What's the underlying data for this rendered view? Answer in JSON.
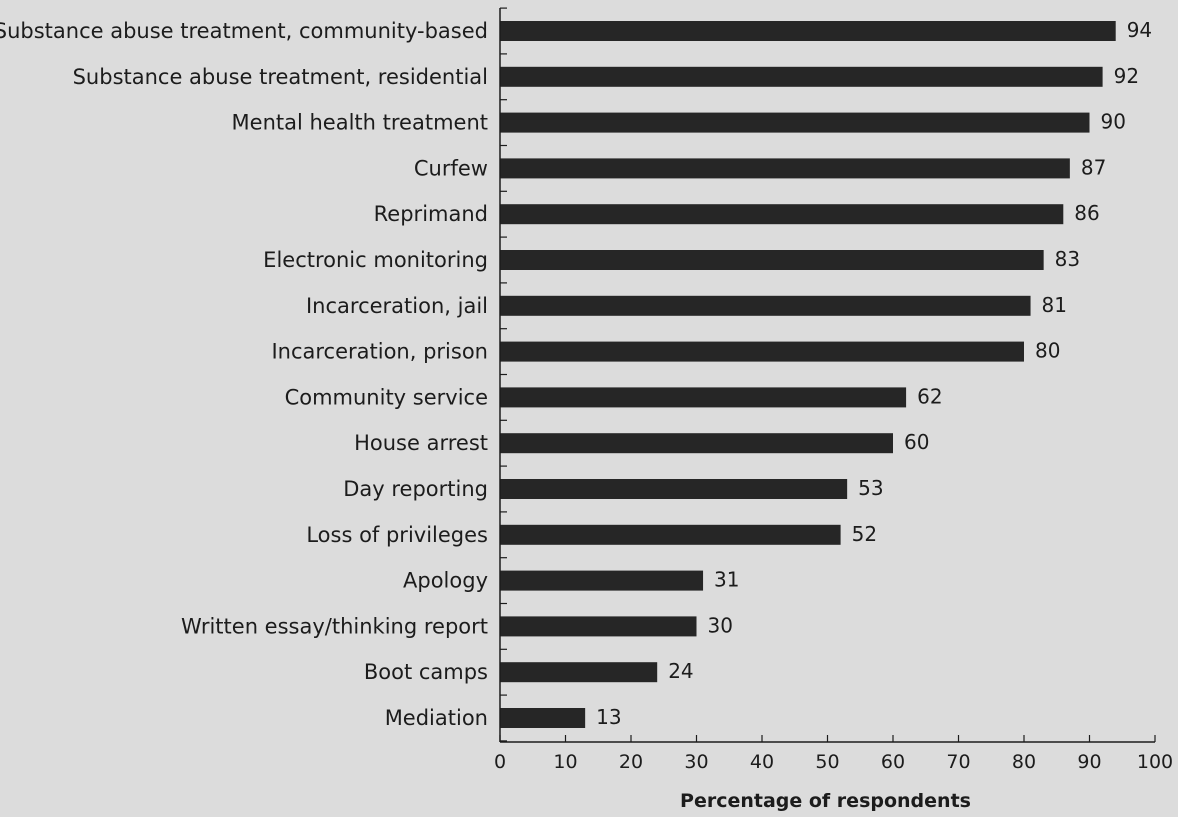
{
  "chart_data": {
    "type": "bar",
    "orientation": "horizontal",
    "categories": [
      "Substance abuse treatment, community-based",
      "Substance abuse treatment, residential",
      "Mental health treatment",
      "Curfew",
      "Reprimand",
      "Electronic monitoring",
      "Incarceration, jail",
      "Incarceration, prison",
      "Community service",
      "House arrest",
      "Day reporting",
      "Loss of privileges",
      "Apology",
      "Written essay/thinking report",
      "Boot camps",
      "Mediation"
    ],
    "values": [
      94,
      92,
      90,
      87,
      86,
      83,
      81,
      80,
      62,
      60,
      53,
      52,
      31,
      30,
      24,
      13
    ],
    "xlabel": "Percentage of respondents",
    "ylabel": "",
    "xlim": [
      0,
      100
    ],
    "xticks": [
      0,
      10,
      20,
      30,
      40,
      50,
      60,
      70,
      80,
      90,
      100
    ],
    "grid": false,
    "colors": {
      "bar": "#262626",
      "background": "#dcdcdc",
      "text": "#1c1c1c"
    }
  }
}
